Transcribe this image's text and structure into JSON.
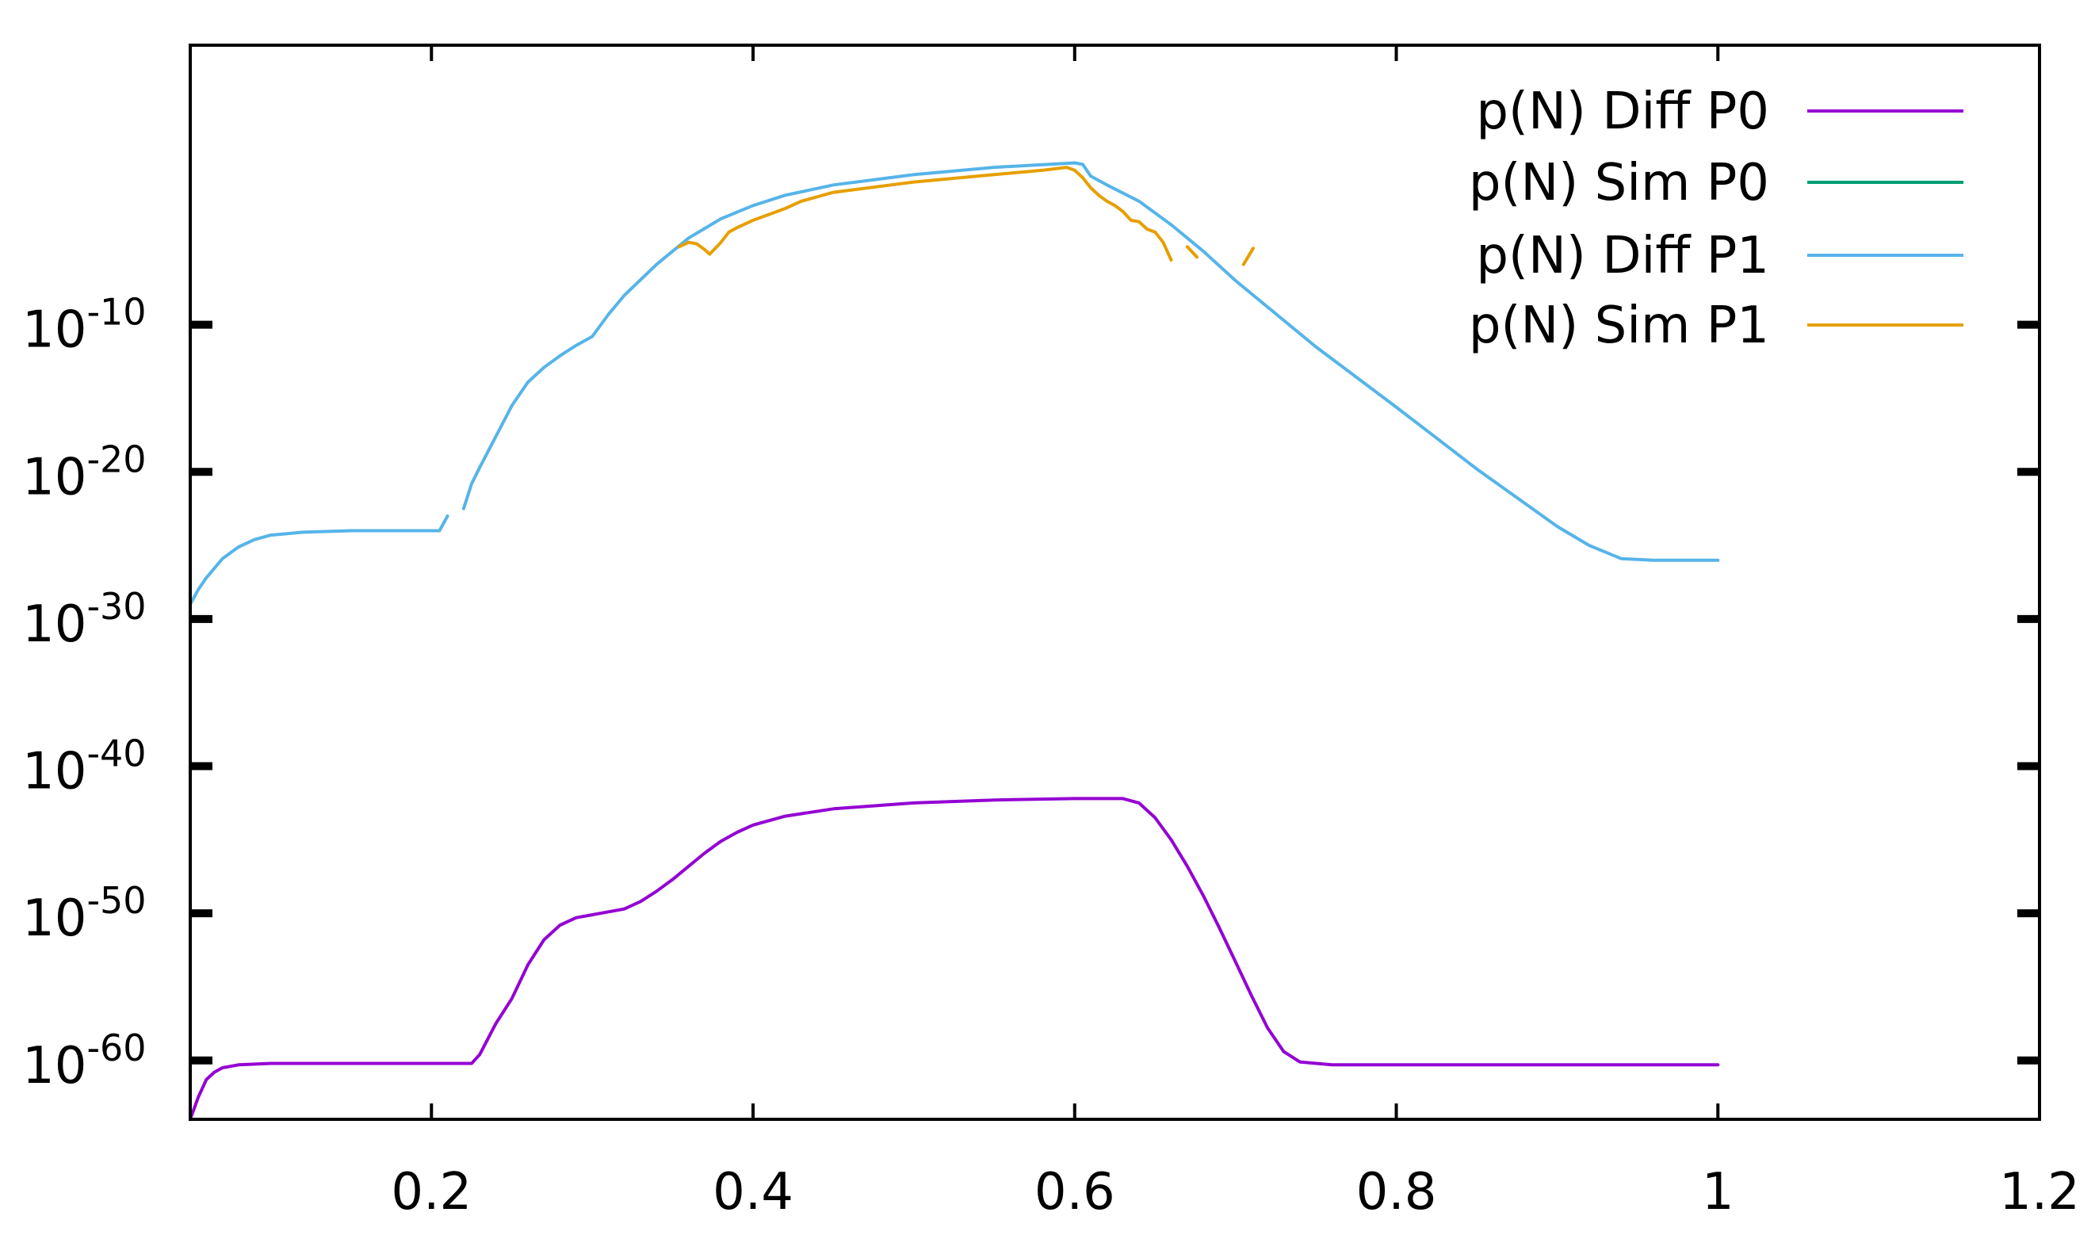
{
  "chart_data": {
    "type": "line",
    "title": "",
    "xlabel": "",
    "ylabel": "",
    "xlim": [
      0.05,
      1.2
    ],
    "ylim_log10": [
      -64,
      9
    ],
    "yscale": "log",
    "grid": false,
    "legend_position": "top-right",
    "x_ticks": [
      {
        "value": 0.2,
        "label": "0.2"
      },
      {
        "value": 0.4,
        "label": "0.4"
      },
      {
        "value": 0.6,
        "label": "0.6"
      },
      {
        "value": 0.8,
        "label": "0.8"
      },
      {
        "value": 1.0,
        "label": "1"
      },
      {
        "value": 1.2,
        "label": "1.2"
      }
    ],
    "y_ticks": [
      {
        "exp": -10,
        "base": "10",
        "sup": "-10"
      },
      {
        "exp": -20,
        "base": "10",
        "sup": "-20"
      },
      {
        "exp": -30,
        "base": "10",
        "sup": "-30"
      },
      {
        "exp": -40,
        "base": "10",
        "sup": "-40"
      },
      {
        "exp": -50,
        "base": "10",
        "sup": "-50"
      },
      {
        "exp": -60,
        "base": "10",
        "sup": "-60"
      }
    ],
    "series": [
      {
        "name": "p(N) Diff P0",
        "color": "#9400d3",
        "x": [
          0.05,
          0.055,
          0.06,
          0.065,
          0.07,
          0.08,
          0.1,
          0.15,
          0.2,
          0.225,
          0.23,
          0.24,
          0.25,
          0.26,
          0.27,
          0.28,
          0.29,
          0.3,
          0.31,
          0.32,
          0.33,
          0.34,
          0.35,
          0.36,
          0.37,
          0.38,
          0.39,
          0.4,
          0.42,
          0.45,
          0.5,
          0.55,
          0.6,
          0.63,
          0.64,
          0.65,
          0.66,
          0.67,
          0.68,
          0.69,
          0.7,
          0.71,
          0.72,
          0.73,
          0.74,
          0.76,
          0.8,
          0.9,
          1.0
        ],
        "log10_y": [
          -64,
          -62.5,
          -61.3,
          -60.8,
          -60.5,
          -60.3,
          -60.2,
          -60.2,
          -60.2,
          -60.2,
          -59.6,
          -57.5,
          -55.8,
          -53.5,
          -51.8,
          -50.8,
          -50.3,
          -50.1,
          -49.9,
          -49.7,
          -49.2,
          -48.5,
          -47.7,
          -46.8,
          -45.9,
          -45.1,
          -44.5,
          -44,
          -43.4,
          -42.9,
          -42.5,
          -42.3,
          -42.2,
          -42.2,
          -42.5,
          -43.5,
          -45,
          -46.8,
          -48.8,
          -51,
          -53.3,
          -55.6,
          -57.8,
          -59.4,
          -60.1,
          -60.3,
          -60.3,
          -60.3,
          -60.3
        ]
      },
      {
        "name": "p(N) Sim P0",
        "color": "#009e73",
        "x": [],
        "log10_y": []
      },
      {
        "name": "p(N) Diff P1",
        "color": "#56b4e9",
        "x": [
          0.05,
          0.055,
          0.06,
          0.07,
          0.08,
          0.09,
          0.1,
          0.12,
          0.15,
          0.2,
          0.205,
          0.21
        ],
        "log10_y": [
          -29,
          -28,
          -27.2,
          -25.9,
          -25.1,
          -24.6,
          -24.3,
          -24.1,
          -24.0,
          -24.0,
          -24.0,
          -23.0
        ],
        "segments": [
          {
            "x": [
              0.22,
              0.225,
              0.23,
              0.24,
              0.25,
              0.26,
              0.27,
              0.28,
              0.29,
              0.3,
              0.31,
              0.32,
              0.34,
              0.36,
              0.38,
              0.4,
              0.42,
              0.45,
              0.5,
              0.55,
              0.6,
              0.605,
              0.61,
              0.62,
              0.64,
              0.66,
              0.68,
              0.7,
              0.75,
              0.8,
              0.85,
              0.9,
              0.92,
              0.94,
              0.96,
              1.0
            ],
            "log10_y": [
              -22.5,
              -20.8,
              -19.7,
              -17.6,
              -15.5,
              -13.9,
              -12.9,
              -12.1,
              -11.4,
              -10.8,
              -9.3,
              -8.0,
              -5.9,
              -4.1,
              -2.8,
              -1.9,
              -1.2,
              -0.5,
              0.2,
              0.7,
              1.0,
              0.9,
              0.1,
              -0.5,
              -1.6,
              -3.2,
              -5.0,
              -7.0,
              -11.5,
              -15.6,
              -19.8,
              -23.7,
              -25.0,
              -25.9,
              -26.0,
              -26.0
            ]
          }
        ]
      },
      {
        "name": "p(N) Sim P1",
        "color": "#e69f00",
        "segments": [
          {
            "x": [
              0.354,
              0.36,
              0.365,
              0.37,
              0.373,
              0.38,
              0.385,
              0.39,
              0.4,
              0.41,
              0.42,
              0.43,
              0.45,
              0.5,
              0.55,
              0.58,
              0.595,
              0.6,
              0.605,
              0.61,
              0.615,
              0.62,
              0.625,
              0.63,
              0.635,
              0.64,
              0.645,
              0.65,
              0.655,
              0.66
            ],
            "log10_y": [
              -4.7,
              -4.4,
              -4.5,
              -4.9,
              -5.2,
              -4.4,
              -3.7,
              -3.4,
              -2.9,
              -2.5,
              -2.1,
              -1.6,
              -1.0,
              -0.3,
              0.2,
              0.5,
              0.7,
              0.5,
              0,
              -0.7,
              -1.2,
              -1.6,
              -1.9,
              -2.3,
              -2.9,
              -3.0,
              -3.5,
              -3.7,
              -4.4,
              -5.6
            ]
          },
          {
            "x": [
              0.67,
              0.676
            ],
            "log10_y": [
              -4.7,
              -5.4
            ]
          },
          {
            "x": [
              0.705,
              0.711
            ],
            "log10_y": [
              -5.9,
              -4.8
            ]
          }
        ]
      }
    ]
  }
}
